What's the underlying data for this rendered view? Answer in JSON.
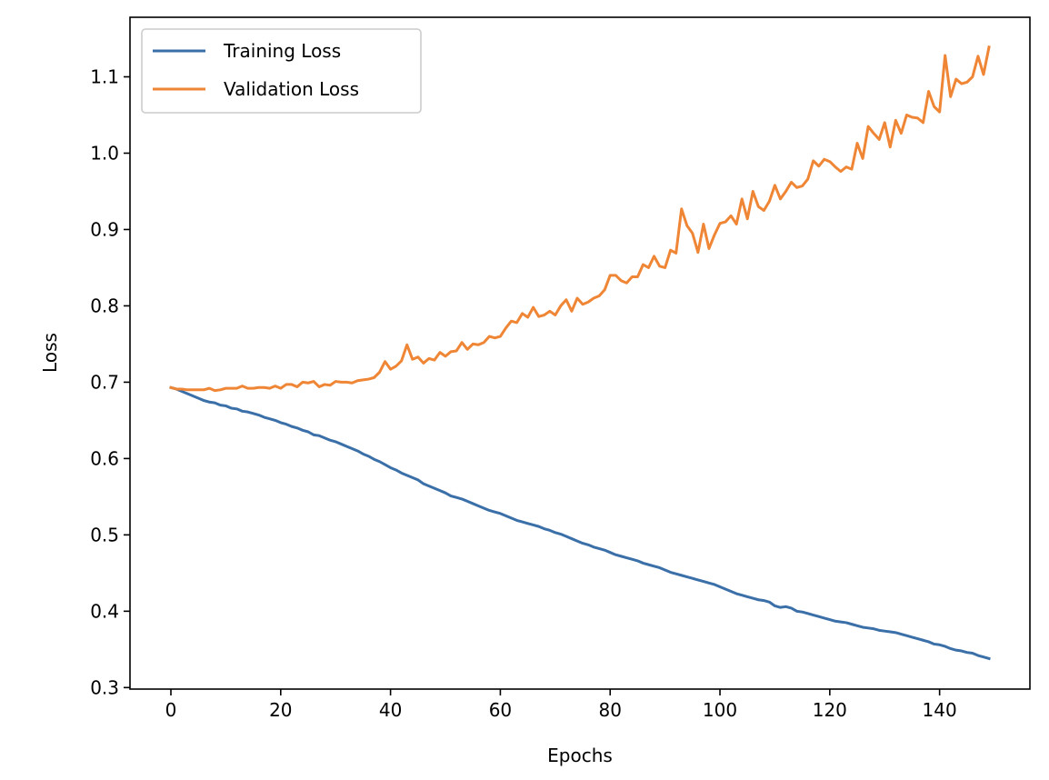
{
  "chart_data": {
    "type": "line",
    "title": "",
    "xlabel": "Epochs",
    "ylabel": "Loss",
    "xlim": [
      -7.45,
      156.45
    ],
    "ylim": [
      0.298,
      1.178
    ],
    "xticks": [
      0,
      20,
      40,
      60,
      80,
      100,
      120,
      140
    ],
    "xtick_labels": [
      "0",
      "20",
      "40",
      "60",
      "80",
      "100",
      "120",
      "140"
    ],
    "yticks": [
      0.3,
      0.4,
      0.5,
      0.6,
      0.7,
      0.8,
      0.9,
      1.0,
      1.1
    ],
    "ytick_labels": [
      "0.3",
      "0.4",
      "0.5",
      "0.6",
      "0.7",
      "0.8",
      "0.9",
      "1.0",
      "1.1"
    ],
    "grid": false,
    "legend_position": "top-left",
    "x_start": 0,
    "x_step": 1,
    "series": [
      {
        "name": "Training Loss",
        "color": "#3a6fa8",
        "values": [
          0.693,
          0.691,
          0.688,
          0.685,
          0.682,
          0.679,
          0.676,
          0.674,
          0.673,
          0.67,
          0.669,
          0.666,
          0.665,
          0.662,
          0.661,
          0.659,
          0.657,
          0.654,
          0.652,
          0.65,
          0.647,
          0.645,
          0.642,
          0.64,
          0.637,
          0.635,
          0.631,
          0.63,
          0.627,
          0.624,
          0.622,
          0.619,
          0.616,
          0.613,
          0.61,
          0.606,
          0.603,
          0.599,
          0.596,
          0.592,
          0.588,
          0.585,
          0.581,
          0.578,
          0.575,
          0.572,
          0.567,
          0.564,
          0.561,
          0.558,
          0.555,
          0.551,
          0.549,
          0.547,
          0.544,
          0.541,
          0.538,
          0.535,
          0.532,
          0.53,
          0.528,
          0.525,
          0.522,
          0.519,
          0.517,
          0.515,
          0.513,
          0.511,
          0.508,
          0.506,
          0.503,
          0.501,
          0.498,
          0.495,
          0.492,
          0.489,
          0.487,
          0.484,
          0.482,
          0.48,
          0.477,
          0.474,
          0.472,
          0.47,
          0.468,
          0.466,
          0.463,
          0.461,
          0.459,
          0.457,
          0.454,
          0.451,
          0.449,
          0.447,
          0.445,
          0.443,
          0.441,
          0.439,
          0.437,
          0.435,
          0.432,
          0.429,
          0.426,
          0.423,
          0.421,
          0.419,
          0.417,
          0.415,
          0.414,
          0.412,
          0.407,
          0.405,
          0.406,
          0.404,
          0.4,
          0.399,
          0.397,
          0.395,
          0.393,
          0.391,
          0.389,
          0.387,
          0.386,
          0.385,
          0.383,
          0.381,
          0.379,
          0.378,
          0.377,
          0.375,
          0.374,
          0.373,
          0.372,
          0.37,
          0.368,
          0.366,
          0.364,
          0.362,
          0.36,
          0.357,
          0.356,
          0.354,
          0.351,
          0.349,
          0.348,
          0.346,
          0.345,
          0.342,
          0.34,
          0.338
        ]
      },
      {
        "name": "Validation Loss",
        "color": "#ef8636",
        "values": [
          0.693,
          0.691,
          0.691,
          0.69,
          0.69,
          0.69,
          0.69,
          0.692,
          0.689,
          0.69,
          0.692,
          0.692,
          0.692,
          0.695,
          0.692,
          0.692,
          0.693,
          0.693,
          0.692,
          0.695,
          0.692,
          0.697,
          0.697,
          0.694,
          0.7,
          0.699,
          0.701,
          0.694,
          0.697,
          0.696,
          0.701,
          0.7,
          0.7,
          0.699,
          0.702,
          0.703,
          0.704,
          0.706,
          0.713,
          0.727,
          0.717,
          0.721,
          0.728,
          0.749,
          0.73,
          0.733,
          0.725,
          0.731,
          0.729,
          0.739,
          0.734,
          0.74,
          0.741,
          0.752,
          0.743,
          0.75,
          0.749,
          0.752,
          0.76,
          0.758,
          0.76,
          0.771,
          0.78,
          0.778,
          0.79,
          0.785,
          0.798,
          0.786,
          0.788,
          0.793,
          0.788,
          0.8,
          0.808,
          0.793,
          0.81,
          0.802,
          0.805,
          0.81,
          0.813,
          0.821,
          0.84,
          0.84,
          0.833,
          0.83,
          0.838,
          0.838,
          0.854,
          0.85,
          0.865,
          0.852,
          0.85,
          0.873,
          0.869,
          0.927,
          0.905,
          0.895,
          0.87,
          0.907,
          0.875,
          0.893,
          0.908,
          0.91,
          0.918,
          0.907,
          0.94,
          0.914,
          0.95,
          0.93,
          0.925,
          0.937,
          0.958,
          0.94,
          0.95,
          0.962,
          0.955,
          0.957,
          0.966,
          0.99,
          0.983,
          0.992,
          0.989,
          0.982,
          0.976,
          0.982,
          0.979,
          1.013,
          0.993,
          1.035,
          1.026,
          1.018,
          1.04,
          1.008,
          1.043,
          1.026,
          1.05,
          1.047,
          1.046,
          1.04,
          1.081,
          1.061,
          1.054,
          1.128,
          1.074,
          1.097,
          1.091,
          1.093,
          1.1,
          1.127,
          1.103,
          1.139
        ]
      }
    ]
  }
}
